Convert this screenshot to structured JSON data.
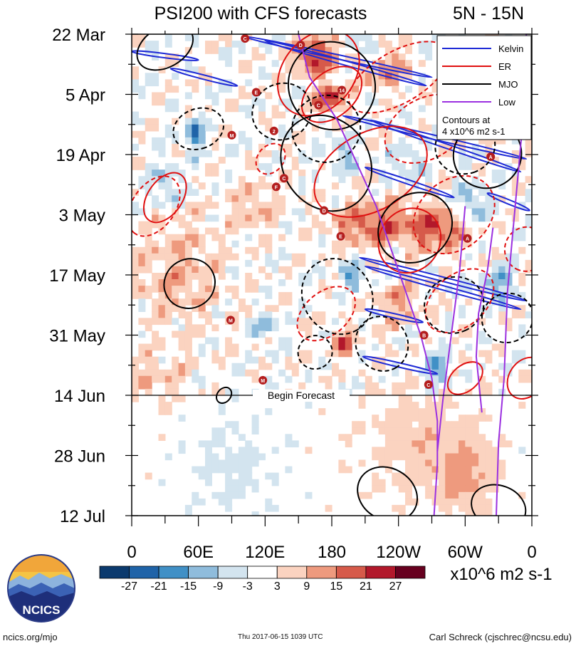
{
  "chart_data": {
    "type": "heatmap",
    "title": "PSI200 with CFS forecasts",
    "region": "5N - 15N",
    "y_ticks": [
      "22 Mar",
      "5 Apr",
      "19 Apr",
      "3 May",
      "17 May",
      "31 May",
      "14 Jun",
      "28 Jun",
      "12 Jul"
    ],
    "x_ticks": [
      "0",
      "60E",
      "120E",
      "180",
      "120W",
      "60W",
      "0"
    ],
    "x_range_deg": [
      0,
      360
    ],
    "y_range_days": [
      0,
      112
    ],
    "forecast_start_day": 84,
    "forecast_label": "Begin Forecast",
    "colorbar": {
      "levels": [
        "-27",
        "-21",
        "-15",
        "-9",
        "-3",
        "3",
        "9",
        "15",
        "21",
        "27"
      ],
      "colors": [
        "#0b3a6e",
        "#1f63a8",
        "#4090c6",
        "#8fbcdc",
        "#d3e4ef",
        "#ffffff",
        "#fbd3c0",
        "#ee9a7e",
        "#d65a4a",
        "#b2182b",
        "#67001f"
      ],
      "units": "x10^6 m2 s-1"
    },
    "legend": {
      "position": "top-right",
      "entries": [
        {
          "name": "Kelvin",
          "color": "#1f2bd6"
        },
        {
          "name": "ER",
          "color": "#e01010"
        },
        {
          "name": "MJO",
          "color": "#000000"
        },
        {
          "name": "Low",
          "color": "#9b30e0"
        }
      ],
      "note_line1": "Contours at",
      "note_line2": "4 x10^6 m2 s-1"
    },
    "series": [
      {
        "name": "Kelvin",
        "segments": [
          {
            "lon": [
              100,
              270
            ],
            "day": [
              0.5,
              10
            ]
          },
          {
            "lon": [
              120,
              265
            ],
            "day": [
              1.5,
              12
            ]
          },
          {
            "lon": [
              0,
              60
            ],
            "day": [
              4,
              6
            ]
          },
          {
            "lon": [
              35,
              95
            ],
            "day": [
              8,
              12
            ]
          },
          {
            "lon": [
              190,
              355
            ],
            "day": [
              19,
              29
            ]
          },
          {
            "lon": [
              215,
              350
            ],
            "day": [
              20,
              32
            ]
          },
          {
            "lon": [
              210,
              290
            ],
            "day": [
              31,
              38
            ]
          },
          {
            "lon": [
              320,
              358
            ],
            "day": [
              37,
              41
            ]
          },
          {
            "lon": [
              205,
              355
            ],
            "day": [
              52,
              62
            ]
          },
          {
            "lon": [
              210,
              350
            ],
            "day": [
              54,
              64
            ]
          },
          {
            "lon": [
              210,
              262
            ],
            "day": [
              64,
              67
            ]
          },
          {
            "lon": [
              208,
              275
            ],
            "day": [
              75,
              79
            ]
          }
        ]
      },
      {
        "name": "ER",
        "ellipses": [
          {
            "lon": 168,
            "day": 9,
            "rx": 32,
            "ry": 11,
            "rot": 40,
            "dash": false
          },
          {
            "lon": 180,
            "day": 14,
            "rx": 20,
            "ry": 8,
            "rot": 50,
            "dash": false
          },
          {
            "lon": 240,
            "day": 10,
            "rx": 50,
            "ry": 6,
            "rot": 150,
            "dash": true
          },
          {
            "lon": 265,
            "day": 22,
            "rx": 40,
            "ry": 7,
            "rot": 150,
            "dash": true
          },
          {
            "lon": 215,
            "day": 32,
            "rx": 55,
            "ry": 9,
            "rot": 150,
            "dash": false
          },
          {
            "lon": 290,
            "day": 42,
            "rx": 40,
            "ry": 8,
            "rot": 140,
            "dash": true
          },
          {
            "lon": 250,
            "day": 48,
            "rx": 30,
            "ry": 7,
            "rot": 125,
            "dash": false
          },
          {
            "lon": 295,
            "day": 62,
            "rx": 35,
            "ry": 6,
            "rot": 140,
            "dash": true
          },
          {
            "lon": 355,
            "day": 50,
            "rx": 20,
            "ry": 5,
            "rot": 110,
            "dash": true
          },
          {
            "lon": 20,
            "day": 40,
            "rx": 30,
            "ry": 5,
            "rot": 125,
            "dash": true
          },
          {
            "lon": 30,
            "day": 38,
            "rx": 25,
            "ry": 4,
            "rot": 125,
            "dash": false
          },
          {
            "lon": 125,
            "day": 29,
            "rx": 15,
            "ry": 3,
            "rot": 130,
            "dash": true
          },
          {
            "lon": 175,
            "day": 65,
            "rx": 30,
            "ry": 5,
            "rot": 140,
            "dash": true
          },
          {
            "lon": 300,
            "day": 80,
            "rx": 18,
            "ry": 3,
            "rot": 140,
            "dash": false
          },
          {
            "lon": 355,
            "day": 80,
            "rx": 20,
            "ry": 4,
            "rot": 125,
            "dash": false
          }
        ]
      },
      {
        "name": "MJO",
        "ellipses": [
          {
            "lon": 30,
            "day": 3,
            "rx": 18,
            "ry": 7,
            "rot": 60,
            "dash": false
          },
          {
            "lon": 180,
            "day": 12,
            "rx": 40,
            "ry": 10,
            "rot": 55,
            "dash": false
          },
          {
            "lon": 175,
            "day": 30,
            "rx": 45,
            "ry": 10,
            "rot": 55,
            "dash": false
          },
          {
            "lon": 60,
            "day": 22,
            "rx": 18,
            "ry": 6,
            "rot": 70,
            "dash": true
          },
          {
            "lon": 135,
            "day": 18,
            "rx": 25,
            "ry": 7,
            "rot": 60,
            "dash": true
          },
          {
            "lon": 175,
            "day": 22,
            "rx": 30,
            "ry": 8,
            "rot": 65,
            "dash": true
          },
          {
            "lon": 320,
            "day": 28,
            "rx": 30,
            "ry": 8,
            "rot": 55,
            "dash": false
          },
          {
            "lon": 300,
            "day": 26,
            "rx": 25,
            "ry": 7,
            "rot": 70,
            "dash": true
          },
          {
            "lon": 255,
            "day": 45,
            "rx": 30,
            "ry": 9,
            "rot": 55,
            "dash": false
          },
          {
            "lon": 185,
            "day": 61,
            "rx": 35,
            "ry": 8,
            "rot": 60,
            "dash": true
          },
          {
            "lon": 290,
            "day": 63,
            "rx": 25,
            "ry": 7,
            "rot": 65,
            "dash": true
          },
          {
            "lon": 338,
            "day": 66,
            "rx": 22,
            "ry": 6,
            "rot": 65,
            "dash": true
          },
          {
            "lon": 52,
            "day": 58,
            "rx": 22,
            "ry": 6,
            "rot": 60,
            "dash": false
          },
          {
            "lon": 165,
            "day": 74,
            "rx": 15,
            "ry": 4,
            "rot": 70,
            "dash": true
          },
          {
            "lon": 225,
            "day": 72,
            "rx": 25,
            "ry": 6,
            "rot": 60,
            "dash": true
          },
          {
            "lon": 83,
            "day": 84,
            "rx": 6,
            "ry": 2,
            "rot": 40,
            "dash": false
          },
          {
            "lon": 230,
            "day": 107,
            "rx": 28,
            "ry": 6,
            "rot": 30,
            "dash": false
          },
          {
            "lon": 330,
            "day": 110,
            "rx": 25,
            "ry": 5,
            "rot": 20,
            "dash": false
          }
        ]
      },
      {
        "name": "Low",
        "lines": [
          {
            "lon": [
              150,
              160,
              185,
              220,
              240,
              260,
              270,
              275,
              275,
              272
            ],
            "day": [
              0,
              10,
              20,
              40,
              55,
              70,
              80,
              90,
              100,
              112
            ]
          },
          {
            "lon": [
              355,
              352,
              345,
              338,
              335,
              330,
              328
            ],
            "day": [
              0,
              20,
              40,
              60,
              80,
              95,
              112
            ]
          },
          {
            "lon": [
              300,
              295,
              290,
              285,
              280,
              275
            ],
            "day": [
              40,
              55,
              65,
              75,
              85,
              97
            ]
          },
          {
            "lon": [
              325,
              320,
              312,
              310,
              315
            ],
            "day": [
              45,
              55,
              65,
              75,
              88
            ]
          }
        ]
      }
    ],
    "storm_markers": [
      {
        "label": "C",
        "lon": 102,
        "day": 1,
        "color": "#b41e1e"
      },
      {
        "label": "D",
        "lon": 152,
        "day": 2.5,
        "color": "#b41e1e"
      },
      {
        "label": "E",
        "lon": 112,
        "day": 13.5,
        "color": "#b41e1e"
      },
      {
        "label": "14",
        "lon": 189,
        "day": 13,
        "color": "#b41e1e"
      },
      {
        "label": "C",
        "lon": 168,
        "day": 16.5,
        "color": "#b41e1e"
      },
      {
        "label": "2",
        "lon": 128,
        "day": 22.5,
        "color": "#b41e1e"
      },
      {
        "label": "M",
        "lon": 90,
        "day": 23.5,
        "color": "#b41e1e"
      },
      {
        "label": "A",
        "lon": 323,
        "day": 28.5,
        "color": "#b41e1e"
      },
      {
        "label": "C",
        "lon": 137,
        "day": 33.5,
        "color": "#b41e1e"
      },
      {
        "label": "F",
        "lon": 130,
        "day": 35.5,
        "color": "#b41e1e"
      },
      {
        "label": "D",
        "lon": 173,
        "day": 41,
        "color": "#b41e1e"
      },
      {
        "label": "E",
        "lon": 188,
        "day": 47,
        "color": "#b41e1e"
      },
      {
        "label": "A",
        "lon": 302,
        "day": 47.5,
        "color": "#b41e1e"
      },
      {
        "label": "M",
        "lon": 89,
        "day": 66.5,
        "color": "#b41e1e"
      },
      {
        "label": "B",
        "lon": 263,
        "day": 70,
        "color": "#b41e1e"
      },
      {
        "label": "M",
        "lon": 118,
        "day": 80.5,
        "color": "#b41e1e"
      },
      {
        "label": "C",
        "lon": 267,
        "day": 81.5,
        "color": "#b41e1e"
      }
    ]
  },
  "logo": {
    "text": "NCICS"
  },
  "footer": {
    "left": "ncics.org/mjo",
    "middle": "Thu 2017-06-15 1039 UTC",
    "right": "Carl Schreck (cjschrec@ncsu.edu)"
  }
}
